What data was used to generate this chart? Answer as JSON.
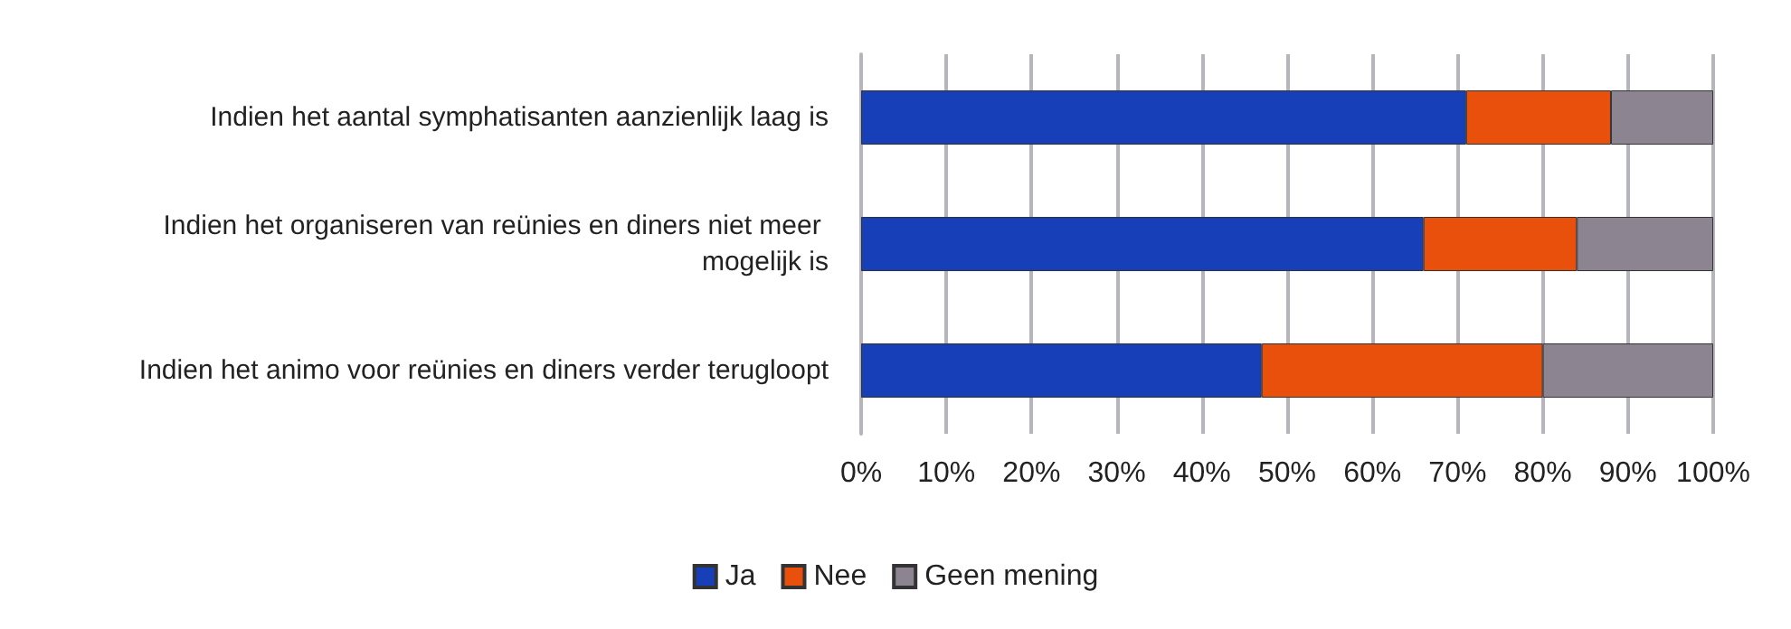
{
  "chart_data": {
    "type": "bar",
    "orientation": "horizontal",
    "stacked": true,
    "categories": [
      "Indien het aantal symphatisanten aanzienlijk laag is",
      "Indien het organiseren van reünies en diners niet meer mogelijk is",
      "Indien het animo voor reünies en diners verder terugloopt"
    ],
    "series": [
      {
        "name": "Ja",
        "color": "#1740b8",
        "values": [
          71,
          66,
          47
        ]
      },
      {
        "name": "Nee",
        "color": "#e8500c",
        "values": [
          17,
          18,
          33
        ]
      },
      {
        "name": "Geen mening",
        "color": "#8c8490",
        "values": [
          12,
          16,
          20
        ]
      }
    ],
    "xlim": [
      0,
      100
    ],
    "xticks": [
      {
        "value": 0,
        "label": "0%"
      },
      {
        "value": 10,
        "label": "10%"
      },
      {
        "value": 20,
        "label": "20%"
      },
      {
        "value": 30,
        "label": "30%"
      },
      {
        "value": 40,
        "label": "40%"
      },
      {
        "value": 50,
        "label": "50%"
      },
      {
        "value": 60,
        "label": "60%"
      },
      {
        "value": 70,
        "label": "70%"
      },
      {
        "value": 80,
        "label": "80%"
      },
      {
        "value": 90,
        "label": "90%"
      },
      {
        "value": 100,
        "label": "100%"
      }
    ],
    "grid": "x",
    "legend": "bottom"
  }
}
